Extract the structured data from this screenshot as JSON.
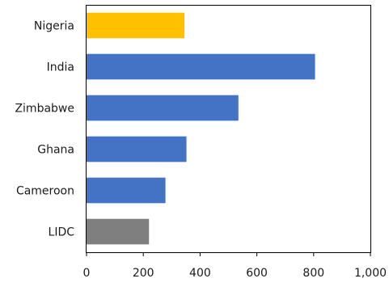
{
  "chart_data": {
    "type": "bar",
    "orientation": "horizontal",
    "categories": [
      "Nigeria",
      "India",
      "Zimbabwe",
      "Ghana",
      "Cameroon",
      "LIDC"
    ],
    "values": [
      345,
      805,
      535,
      352,
      278,
      220
    ],
    "bar_colors": [
      "#FFC000",
      "#4472C4",
      "#4472C4",
      "#4472C4",
      "#4472C4",
      "#7F7F7F"
    ],
    "xlim": [
      0,
      1000
    ],
    "xticks": [
      0,
      200,
      400,
      600,
      800,
      1000
    ],
    "xtick_labels": [
      "0",
      "200",
      "400",
      "600",
      "800",
      "1,000"
    ],
    "grid": false,
    "legend": "none"
  }
}
